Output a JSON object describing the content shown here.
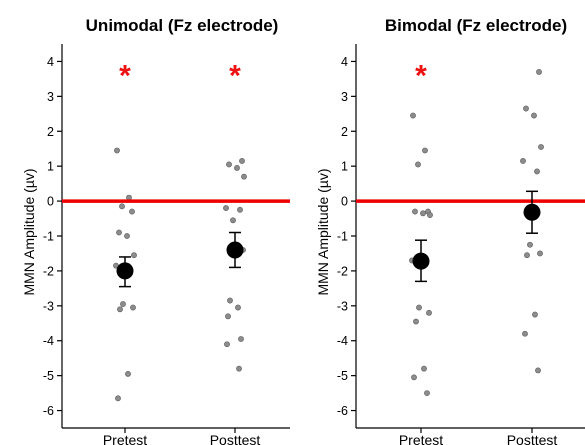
{
  "chart_data": [
    {
      "type": "scatter",
      "title": "Unimodal (Fz electrode)",
      "xlabel": "",
      "ylabel": "MMN Amplitude (µv)",
      "categories": [
        "Pretest",
        "Posttest"
      ],
      "ylim": [
        -6.5,
        4.5
      ],
      "yticks": [
        4,
        3,
        2,
        1,
        0,
        -1,
        -2,
        -3,
        -4,
        -5,
        -6
      ],
      "reference_line": {
        "y": 0,
        "color": "#ee0000"
      },
      "significance": [
        {
          "category": "Pretest",
          "label": "*"
        },
        {
          "category": "Posttest",
          "label": "*"
        }
      ],
      "points": {
        "Pretest": [
          1.45,
          0.1,
          -0.15,
          -0.3,
          -0.9,
          -1.0,
          -1.55,
          -1.85,
          -2.0,
          -2.95,
          -3.05,
          -3.1,
          -4.95,
          -5.65
        ],
        "Posttest": [
          1.15,
          1.05,
          0.95,
          0.7,
          -0.2,
          -0.25,
          -0.55,
          -1.4,
          -2.85,
          -3.05,
          -3.3,
          -3.95,
          -4.1,
          -4.8
        ]
      },
      "means": [
        {
          "category": "Pretest",
          "mean": -2.0,
          "lower": -2.45,
          "upper": -1.6
        },
        {
          "category": "Posttest",
          "mean": -1.4,
          "lower": -1.9,
          "upper": -0.9
        }
      ]
    },
    {
      "type": "scatter",
      "title": "Bimodal (Fz electrode)",
      "xlabel": "",
      "ylabel": "MMN Amplitude (µv)",
      "categories": [
        "Pretest",
        "Posttest"
      ],
      "ylim": [
        -6.5,
        4.5
      ],
      "yticks": [
        4,
        3,
        2,
        1,
        0,
        -1,
        -2,
        -3,
        -4,
        -5,
        -6
      ],
      "reference_line": {
        "y": 0,
        "color": "#ee0000"
      },
      "significance": [
        {
          "category": "Pretest",
          "label": "*"
        }
      ],
      "points": {
        "Pretest": [
          2.45,
          1.45,
          1.05,
          -0.3,
          -0.3,
          -0.35,
          -0.4,
          -1.7,
          -1.8,
          -3.05,
          -3.2,
          -3.45,
          -4.8,
          -5.05,
          -5.5
        ],
        "Posttest": [
          3.7,
          2.65,
          2.45,
          1.55,
          1.15,
          0.85,
          -1.25,
          -1.5,
          -1.55,
          -3.25,
          -3.8,
          -4.85
        ]
      },
      "means": [
        {
          "category": "Pretest",
          "mean": -1.72,
          "lower": -2.3,
          "upper": -1.12
        },
        {
          "category": "Posttest",
          "mean": -0.32,
          "lower": -0.92,
          "upper": 0.28
        }
      ]
    }
  ]
}
